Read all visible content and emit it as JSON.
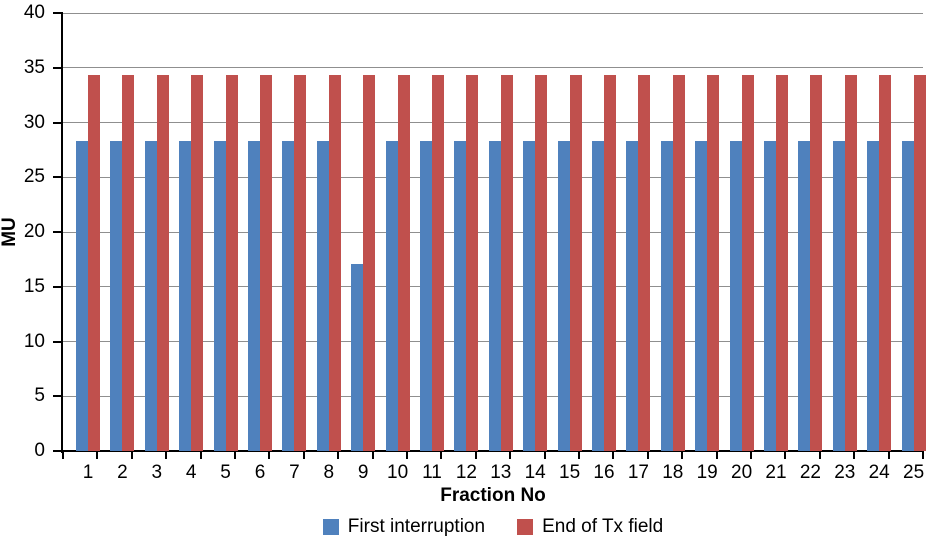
{
  "chart_data": {
    "type": "bar",
    "title": "",
    "xlabel": "Fraction No",
    "ylabel": "MU",
    "ylim": [
      0,
      40
    ],
    "yticks": [
      0,
      5,
      10,
      15,
      20,
      25,
      30,
      35,
      40
    ],
    "grid": "horizontal",
    "legend_position": "bottom",
    "categories": [
      "1",
      "2",
      "3",
      "4",
      "5",
      "6",
      "7",
      "8",
      "9",
      "10",
      "11",
      "12",
      "13",
      "14",
      "15",
      "16",
      "17",
      "18",
      "19",
      "20",
      "21",
      "22",
      "23",
      "24",
      "25"
    ],
    "series": [
      {
        "name": "First interruption",
        "color": "#4f81bd",
        "values": [
          28.3,
          28.3,
          28.3,
          28.3,
          28.3,
          28.3,
          28.3,
          28.3,
          17.1,
          28.3,
          28.3,
          28.3,
          28.3,
          28.3,
          28.3,
          28.3,
          28.3,
          28.3,
          28.3,
          28.3,
          28.3,
          28.3,
          28.3,
          28.3,
          28.3
        ]
      },
      {
        "name": "End of Tx field",
        "color": "#c0504d",
        "values": [
          34.3,
          34.3,
          34.3,
          34.3,
          34.3,
          34.3,
          34.3,
          34.3,
          34.3,
          34.3,
          34.3,
          34.3,
          34.3,
          34.3,
          34.3,
          34.3,
          34.3,
          34.3,
          34.3,
          34.3,
          34.3,
          34.3,
          34.3,
          34.3,
          34.3
        ]
      }
    ]
  },
  "colors": {
    "background": "#ffffff",
    "axis": "#000000",
    "gridline": "#8f8f8f"
  }
}
